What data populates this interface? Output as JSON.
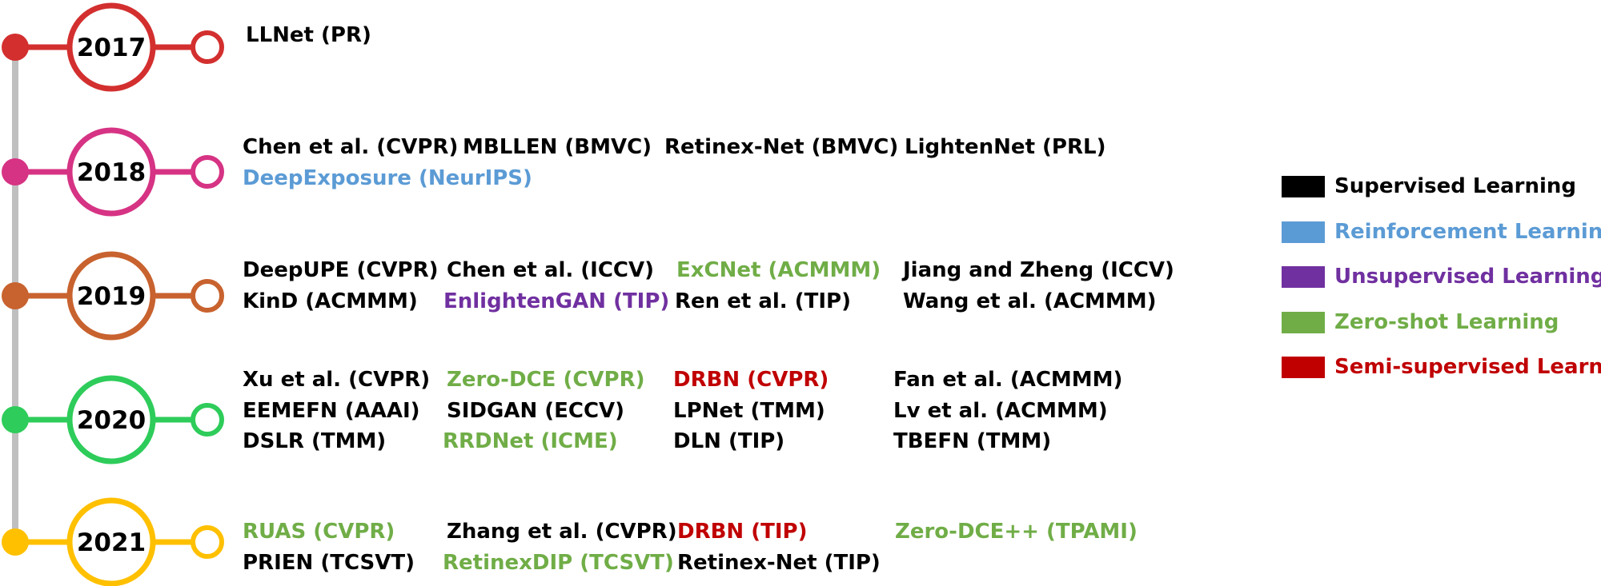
{
  "colors": {
    "supervised": "#000000",
    "reinforcement": "#5b9bd5",
    "unsupervised": "#7030a0",
    "zero_shot": "#70ad47",
    "semi_supervised": "#c00000",
    "axis": "#bfbfbf"
  },
  "years": [
    {
      "label": "2017",
      "color": "#d32f2f"
    },
    {
      "label": "2018",
      "color": "#d63384"
    },
    {
      "label": "2019",
      "color": "#c8622e"
    },
    {
      "label": "2020",
      "color": "#2ecc5a"
    },
    {
      "label": "2021",
      "color": "#ffc000"
    }
  ],
  "entries": {
    "y2017": [
      {
        "text": "LLNet (PR)",
        "type": "supervised"
      }
    ],
    "y2018": [
      {
        "text": "Chen et al. (CVPR)",
        "type": "supervised"
      },
      {
        "text": "MBLLEN (BMVC)",
        "type": "supervised"
      },
      {
        "text": "Retinex-Net (BMVC)",
        "type": "supervised"
      },
      {
        "text": "LightenNet (PRL)",
        "type": "supervised"
      },
      {
        "text": "DeepExposure (NeurIPS)",
        "type": "reinforcement"
      }
    ],
    "y2019": [
      {
        "text": "DeepUPE (CVPR)",
        "type": "supervised"
      },
      {
        "text": "Chen et al. (ICCV)",
        "type": "supervised"
      },
      {
        "text": "ExCNet (ACMMM)",
        "type": "zero_shot"
      },
      {
        "text": "Jiang and Zheng (ICCV)",
        "type": "supervised"
      },
      {
        "text": "KinD (ACMMM)",
        "type": "supervised"
      },
      {
        "text": "EnlightenGAN (TIP)",
        "type": "unsupervised"
      },
      {
        "text": "Ren et al. (TIP)",
        "type": "supervised"
      },
      {
        "text": "Wang et al. (ACMMM)",
        "type": "supervised"
      }
    ],
    "y2020": [
      {
        "text": "Xu et al. (CVPR)",
        "type": "supervised"
      },
      {
        "text": "Zero-DCE (CVPR)",
        "type": "zero_shot"
      },
      {
        "text": "DRBN (CVPR)",
        "type": "semi_supervised"
      },
      {
        "text": "Fan et al. (ACMMM)",
        "type": "supervised"
      },
      {
        "text": "EEMEFN (AAAI)",
        "type": "supervised"
      },
      {
        "text": "SIDGAN (ECCV)",
        "type": "supervised"
      },
      {
        "text": "LPNet (TMM)",
        "type": "supervised"
      },
      {
        "text": "Lv et al. (ACMMM)",
        "type": "supervised"
      },
      {
        "text": "DSLR (TMM)",
        "type": "supervised"
      },
      {
        "text": "RRDNet (ICME)",
        "type": "zero_shot"
      },
      {
        "text": "DLN (TIP)",
        "type": "supervised"
      },
      {
        "text": "TBEFN (TMM)",
        "type": "supervised"
      }
    ],
    "y2021": [
      {
        "text": "RUAS (CVPR)",
        "type": "zero_shot"
      },
      {
        "text": "Zhang et al. (CVPR)",
        "type": "supervised"
      },
      {
        "text": "DRBN (TIP)",
        "type": "semi_supervised"
      },
      {
        "text": "Zero-DCE++ (TPAMI)",
        "type": "zero_shot"
      },
      {
        "text": "PRIEN (TCSVT)",
        "type": "supervised"
      },
      {
        "text": "RetinexDIP (TCSVT)",
        "type": "zero_shot"
      },
      {
        "text": "Retinex-Net (TIP)",
        "type": "supervised"
      }
    ]
  },
  "legend": [
    {
      "label": "Supervised Learning",
      "type": "supervised"
    },
    {
      "label": "Reinforcement Learning",
      "type": "reinforcement"
    },
    {
      "label": "Unsupervised Learning",
      "type": "unsupervised"
    },
    {
      "label": "Zero-shot Learning",
      "type": "zero_shot"
    },
    {
      "label": "Semi-supervised Learning",
      "type": "semi_supervised"
    }
  ]
}
